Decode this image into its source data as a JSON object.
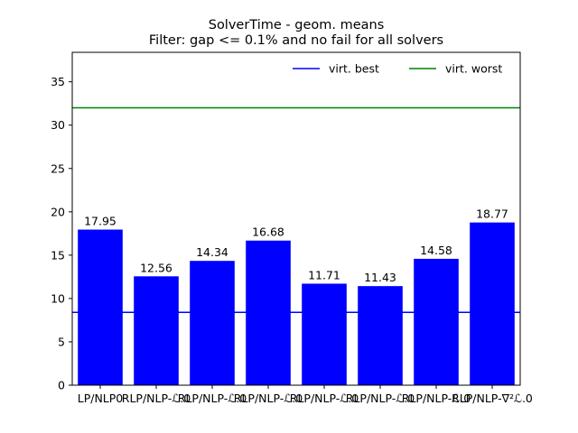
{
  "chart_data": {
    "type": "bar",
    "title_line1": "SolverTime - geom. means",
    "title_line2": "Filter: gap <= 0.1% and no fail for all solvers",
    "xlabel": "",
    "ylabel": "",
    "categories": [
      "LP/NLP0",
      "RLP/NLP-ℒ.0",
      "RLP/NLP-ℒ.0",
      "RLP/NLP-ℒ.0",
      "RLP/NLP-ℒ.0",
      "RLP/NLP-ℒ.0",
      "RLP/NLP-ℒ.0",
      "RLP/NLP-∇²ℒ.0"
    ],
    "values": [
      17.95,
      12.56,
      14.34,
      16.68,
      11.71,
      11.43,
      14.58,
      18.77
    ],
    "value_labels": [
      "17.95",
      "12.56",
      "14.34",
      "16.68",
      "11.71",
      "11.43",
      "14.58",
      "18.77"
    ],
    "ylim": [
      0,
      38.4
    ],
    "yticks": [
      0,
      5,
      10,
      15,
      20,
      25,
      30,
      35
    ],
    "grid": false,
    "legend_position": "top-right",
    "bar_color": "#0000ff",
    "reference_lines": [
      {
        "name": "virt. best",
        "value": 8.4,
        "color": "#0000ff"
      },
      {
        "name": "virt. worst",
        "value": 32.0,
        "color": "#008000"
      }
    ]
  }
}
